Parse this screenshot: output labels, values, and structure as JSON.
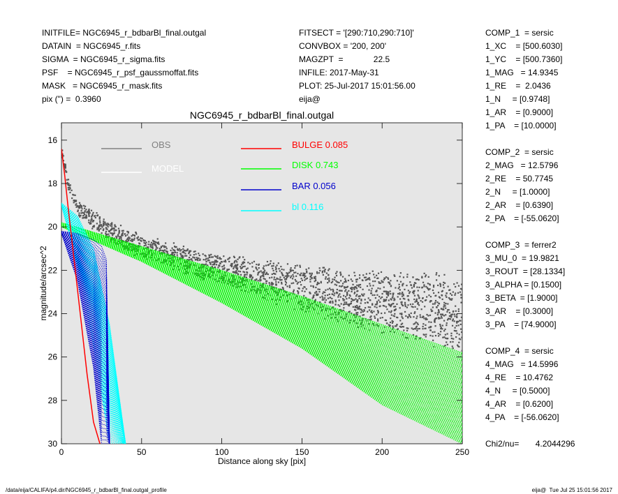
{
  "header_left": [
    "INITFILE= NGC6945_r_bdbarBl_final.outgal",
    "DATAIN  = NGC6945_r.fits",
    "SIGMA  = NGC6945_r_sigma.fits",
    "PSF    = NGC6945_r_psf_gaussmoffat.fits",
    "MASK   = NGC6945_r_mask.fits",
    "pix (\") =  0.3960"
  ],
  "header_mid": [
    "FITSECT = '[290:710,290:710]'",
    "CONVBOX = '200, 200'",
    "MAGZPT  =             22.5",
    "INFILE: 2017-May-31",
    "PLOT: 25-Jul-2017 15:01:56.00",
    "eija@"
  ],
  "params": [
    "COMP_1  = sersic",
    "1_XC    = [500.6030]",
    "1_YC    = [500.7360]",
    "1_MAG   = 14.9345",
    "1_RE    =  2.0436",
    "1_N     = [0.9748]",
    "1_AR    = [0.9000]",
    "1_PA    = [10.0000]",
    "",
    "COMP_2  = sersic",
    "2_MAG   = 12.5796",
    "2_RE    = 50.7745",
    "2_N     = [1.0000]",
    "2_AR    = [0.6390]",
    "2_PA    = [-55.0620]",
    "",
    "COMP_3  = ferrer2",
    "3_MU_0  = 19.9821",
    "3_ROUT  = [28.1334]",
    "3_ALPHA = [0.1500]",
    "3_BETA  = [1.9000]",
    "3_AR    = [0.3000]",
    "3_PA    = [74.9000]",
    "",
    "COMP_4  = sersic",
    "4_MAG   = 14.5996",
    "4_RE    = 10.4762",
    "4_N     = [0.5000]",
    "4_AR    = [0.6200]",
    "4_PA    = [-56.0620]",
    "",
    "Chi2/nu=       4.2044296"
  ],
  "footer_left": "/data/eija/CALIFA/p4.dir/NGC6945_r_bdbarBl_final.outgal_profile",
  "footer_right": "eija@  Tue Jul 25 15:01:56 2017",
  "chart_data": {
    "type": "scatter",
    "title": "NGC6945_r_bdbarBl_final.outgal",
    "xlabel": "Distance along sky [pix]",
    "ylabel": "magnitude/arcsec^2",
    "xlim": [
      0,
      250
    ],
    "ylim": [
      30,
      15.2
    ],
    "y_inverted": true,
    "x_ticks": [
      0,
      50,
      100,
      150,
      200,
      250
    ],
    "y_ticks": [
      16,
      18,
      20,
      22,
      24,
      26,
      28,
      30
    ],
    "grid": false,
    "background": "#e6e6e6",
    "legend_position": "top",
    "legend": [
      {
        "name": "OBS",
        "color": "#808080"
      },
      {
        "name": "MODEL",
        "color": "#ffffff"
      },
      {
        "name": "BULGE",
        "value": "0.085",
        "color": "#ff0000"
      },
      {
        "name": "DISK",
        "value": "0.743",
        "color": "#00ff00"
      },
      {
        "name": "BAR",
        "value": "0.056",
        "color": "#0000cc"
      },
      {
        "name": "bl",
        "value": "0.116",
        "color": "#00ffff"
      }
    ],
    "series": [
      {
        "name": "OBS",
        "kind": "scatter-band",
        "x_range": [
          0,
          250
        ],
        "x": [
          0,
          2,
          5,
          10,
          15,
          20,
          30,
          40,
          60,
          80,
          100,
          130,
          160,
          190,
          220,
          250
        ],
        "y_center": [
          16.4,
          17.2,
          18.3,
          19.1,
          19.4,
          19.7,
          20.2,
          20.6,
          21.1,
          21.6,
          22.0,
          22.5,
          23.0,
          23.4,
          23.7,
          24.1
        ],
        "y_halfwidth": [
          0.2,
          0.3,
          0.4,
          0.4,
          0.4,
          0.5,
          0.5,
          0.6,
          0.6,
          0.7,
          0.8,
          1.0,
          1.2,
          1.5,
          1.7,
          2.0
        ]
      },
      {
        "name": "DISK",
        "kind": "band",
        "x": [
          0,
          50,
          100,
          150,
          200,
          250
        ],
        "y_upper": [
          19.8,
          20.9,
          22.0,
          23.2,
          24.5,
          25.8
        ],
        "y_lower": [
          20.0,
          21.6,
          23.5,
          25.6,
          28.2,
          30.0
        ]
      },
      {
        "name": "BAR",
        "kind": "band",
        "x": [
          0,
          10,
          20,
          25,
          28,
          30
        ],
        "y_upper": [
          20.2,
          20.3,
          20.6,
          20.9,
          21.5,
          30.0
        ],
        "y_lower": [
          20.3,
          22.5,
          26.5,
          30.0,
          30.0,
          30.0
        ]
      },
      {
        "name": "bl",
        "kind": "band",
        "x": [
          0,
          10,
          20,
          30,
          40
        ],
        "y_upper": [
          18.9,
          19.5,
          21.0,
          24.5,
          30.0
        ],
        "y_lower": [
          19.0,
          21.8,
          25.5,
          30.0,
          30.0
        ]
      },
      {
        "name": "BULGE",
        "kind": "line",
        "x": [
          0,
          2,
          4,
          8,
          12,
          16,
          20,
          24
        ],
        "y": [
          16.4,
          17.6,
          19.0,
          21.6,
          24.2,
          26.8,
          29.0,
          30.0
        ]
      }
    ]
  }
}
